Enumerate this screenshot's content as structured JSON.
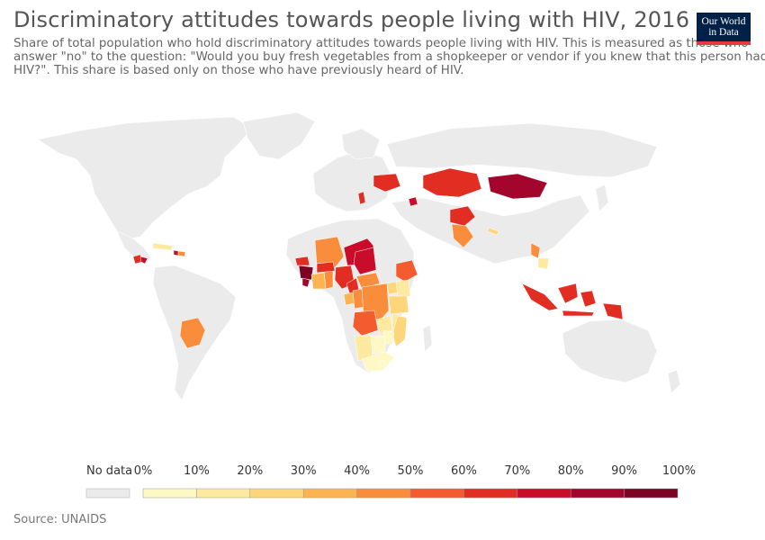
{
  "header": {
    "title": "Discriminatory attitudes towards people living with HIV, 2016",
    "subtitle": "Share of total population who hold discriminatory attitudes towards people living with HIV. This is measured as those who answer \"no\" to the question: \"Would you buy fresh vegetables from a shopkeeper or vendor if you knew that this person had HIV?\". This share is based only on those who have previously heard of HIV.",
    "logo_line1": "Our World",
    "logo_line2": "in Data"
  },
  "colors": {
    "no_data": "#ebebeb",
    "bins": [
      "#fef8c4",
      "#fee9a0",
      "#fdd57b",
      "#fcb452",
      "#fa8d3c",
      "#f45b2e",
      "#e22d23",
      "#c90c2a",
      "#a3052d",
      "#7b0323"
    ]
  },
  "legend": {
    "no_data_label": "No data",
    "ticks": [
      "0%",
      "10%",
      "20%",
      "30%",
      "40%",
      "50%",
      "60%",
      "70%",
      "80%",
      "90%",
      "100%"
    ]
  },
  "source": "Source: UNAIDS"
}
